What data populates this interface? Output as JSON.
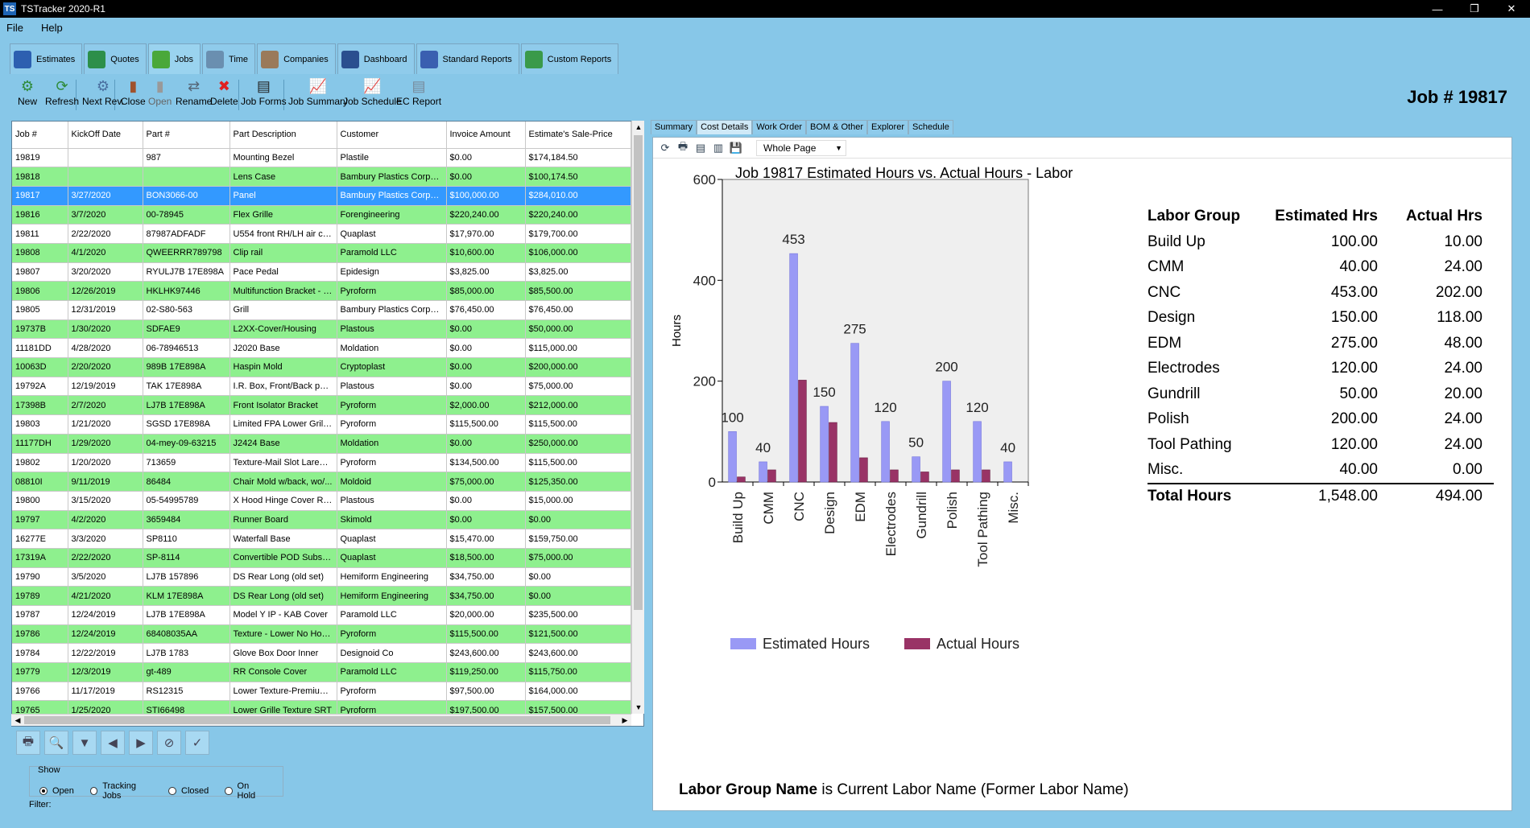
{
  "window": {
    "title": "TSTracker 2020-R1",
    "app_icon": "TS",
    "minimize": "—",
    "maximize": "❐",
    "close": "✕"
  },
  "menu": [
    "File",
    "Help"
  ],
  "module_tabs": [
    {
      "label": "Estimates",
      "icon": "estimates-icon",
      "color": "#2d5fb0"
    },
    {
      "label": "Quotes",
      "icon": "quotes-icon",
      "color": "#2d8f4a"
    },
    {
      "label": "Jobs",
      "icon": "jobs-gear-icon",
      "color": "#4aa83a",
      "active": true
    },
    {
      "label": "Time",
      "icon": "clock-icon",
      "color": "#6a8fb0"
    },
    {
      "label": "Companies",
      "icon": "companies-icon",
      "color": "#9a7a5a"
    },
    {
      "label": "Dashboard",
      "icon": "dashboard-icon",
      "color": "#2a4f8f"
    },
    {
      "label": "Standard Reports",
      "icon": "standard-reports-icon",
      "color": "#3a5fb0"
    },
    {
      "label": "Custom Reports",
      "icon": "custom-reports-icon",
      "color": "#3a9a4a"
    }
  ],
  "toolbar": [
    {
      "label": "New",
      "icon": "new-gear-icon",
      "glyph": "⚙",
      "color": "#2e8b3a"
    },
    {
      "label": "Refresh",
      "icon": "refresh-icon",
      "glyph": "⟳",
      "color": "#2e8b3a"
    },
    {
      "label": "Next Rev.",
      "icon": "next-revision-icon",
      "glyph": "⚙",
      "color": "#4a6fa0"
    },
    {
      "label": "Close",
      "icon": "close-job-icon",
      "glyph": "▮",
      "color": "#a0522d"
    },
    {
      "label": "Open",
      "icon": "open-job-icon",
      "glyph": "▮",
      "color": "#999999",
      "disabled": true
    },
    {
      "label": "Rename",
      "icon": "rename-icon",
      "glyph": "⇄",
      "color": "#556677"
    },
    {
      "label": "Delete",
      "icon": "delete-icon",
      "glyph": "✖",
      "color": "#e02020"
    },
    {
      "label": "Job Forms",
      "icon": "job-forms-icon",
      "glyph": "▤",
      "color": "#222222"
    },
    {
      "label": "Job Summary",
      "icon": "job-summary-icon",
      "glyph": "📈",
      "color": "#c03030"
    },
    {
      "label": "Job Schedule",
      "icon": "job-schedule-icon",
      "glyph": "📈",
      "color": "#c03030"
    },
    {
      "label": "EC Report",
      "icon": "ec-report-icon",
      "glyph": "▤",
      "color": "#778899"
    }
  ],
  "job_header": "Job # 19817",
  "grid": {
    "columns": [
      "Job #",
      "KickOff Date",
      "Part #",
      "Part Description",
      "Customer",
      "Invoice Amount",
      "Estimate's Sale-Price"
    ],
    "rows": [
      {
        "c": [
          "19819",
          "",
          "987",
          "Mounting Bezel",
          "Plastile",
          "$0.00",
          "$174,184.50"
        ],
        "s": ""
      },
      {
        "c": [
          "19818",
          "",
          "",
          "Lens Case",
          "Bambury Plastics Corpora...",
          "$0.00",
          "$100,174.50"
        ],
        "s": "green"
      },
      {
        "c": [
          "19817",
          "3/27/2020",
          "BON3066-00",
          "Panel",
          "Bambury Plastics Corpora...",
          "$100,000.00",
          "$284,010.00"
        ],
        "s": "sel"
      },
      {
        "c": [
          "19816",
          "3/7/2020",
          "00-78945",
          "Flex Grille",
          "Forengineering",
          "$220,240.00",
          "$220,240.00"
        ],
        "s": "green"
      },
      {
        "c": [
          "19811",
          "2/22/2020",
          "87987ADFADF",
          "U554 front RH/LH air cu...",
          "Quaplast",
          "$17,970.00",
          "$179,700.00"
        ],
        "s": ""
      },
      {
        "c": [
          "19808",
          "4/1/2020",
          "QWEERRR789798",
          "Clip rail",
          "Paramold LLC",
          "$10,600.00",
          "$106,000.00"
        ],
        "s": "green"
      },
      {
        "c": [
          "19807",
          "3/20/2020",
          "RYULJ7B 17E898A",
          "Pace Pedal",
          "Epidesign",
          "$3,825.00",
          "$3,825.00"
        ],
        "s": ""
      },
      {
        "c": [
          "19806",
          "12/26/2019",
          "HKLHK97446",
          "Multifunction Bracket - 3 ...",
          "Pyroform",
          "$85,000.00",
          "$85,500.00"
        ],
        "s": "green"
      },
      {
        "c": [
          "19805",
          "12/31/2019",
          "02-S80-563",
          "Grill",
          "Bambury Plastics Corpora...",
          "$76,450.00",
          "$76,450.00"
        ],
        "s": ""
      },
      {
        "c": [
          "19737B",
          "1/30/2020",
          "SDFAE9",
          "L2XX-Cover/Housing",
          "Plastous",
          "$0.00",
          "$50,000.00"
        ],
        "s": "green"
      },
      {
        "c": [
          "11181DD",
          "4/28/2020",
          "06-78946513",
          "J2020 Base",
          "Moldation",
          "$0.00",
          "$115,000.00"
        ],
        "s": ""
      },
      {
        "c": [
          "10063D",
          "2/20/2020",
          "989B 17E898A",
          "Haspin Mold",
          "Cryptoplast",
          "$0.00",
          "$200,000.00"
        ],
        "s": "green"
      },
      {
        "c": [
          "19792A",
          "12/19/2019",
          "TAK 17E898A",
          "I.R. Box, Front/Back panel",
          "Plastous",
          "$0.00",
          "$75,000.00"
        ],
        "s": ""
      },
      {
        "c": [
          "17398B",
          "2/7/2020",
          "LJ7B 17E898A",
          "Front Isolator Bracket",
          "Pyroform",
          "$2,000.00",
          "$212,000.00"
        ],
        "s": "green"
      },
      {
        "c": [
          "19803",
          "1/21/2020",
          "SGSD 17E898A",
          "Limited FPA Lower Grille ...",
          "Pyroform",
          "$115,500.00",
          "$115,500.00"
        ],
        "s": ""
      },
      {
        "c": [
          "11177DH",
          "1/29/2020",
          "04-mey-09-63215",
          "J2424 Base",
          "Moldation",
          "$0.00",
          "$250,000.00"
        ],
        "s": "green"
      },
      {
        "c": [
          "19802",
          "1/20/2020",
          "713659",
          "Texture-Mail Slot Laredo...",
          "Pyroform",
          "$134,500.00",
          "$115,500.00"
        ],
        "s": ""
      },
      {
        "c": [
          "08810I",
          "9/11/2019",
          "86484",
          "Chair Mold w/back, wo/...",
          "Moldoid",
          "$75,000.00",
          "$125,350.00"
        ],
        "s": "green"
      },
      {
        "c": [
          "19800",
          "3/15/2020",
          "05-54995789",
          "X Hood Hinge Cover RH...",
          "Plastous",
          "$0.00",
          "$15,000.00"
        ],
        "s": ""
      },
      {
        "c": [
          "19797",
          "4/2/2020",
          "3659484",
          "Runner Board",
          "Skimold",
          "$0.00",
          "$0.00"
        ],
        "s": "green"
      },
      {
        "c": [
          "16277E",
          "3/3/2020",
          "SP8110",
          "Waterfall Base",
          "Quaplast",
          "$15,470.00",
          "$159,750.00"
        ],
        "s": ""
      },
      {
        "c": [
          "17319A",
          "2/22/2020",
          "SP-8114",
          "Convertible POD Substrate",
          "Quaplast",
          "$18,500.00",
          "$75,000.00"
        ],
        "s": "green"
      },
      {
        "c": [
          "19790",
          "3/5/2020",
          "LJ7B 157896",
          "DS Rear Long (old set)",
          "Hemiform Engineering",
          "$34,750.00",
          "$0.00"
        ],
        "s": ""
      },
      {
        "c": [
          "19789",
          "4/21/2020",
          "KLM 17E898A",
          "DS Rear Long (old set)",
          "Hemiform Engineering",
          "$34,750.00",
          "$0.00"
        ],
        "s": "green"
      },
      {
        "c": [
          "19787",
          "12/24/2019",
          "LJ7B 17E898A",
          "Model Y IP - KAB Cover",
          "Paramold LLC",
          "$20,000.00",
          "$235,500.00"
        ],
        "s": ""
      },
      {
        "c": [
          "19786",
          "12/24/2019",
          "68408035AA",
          "Texture -  Lower No Hoo...",
          "Pyroform",
          "$115,500.00",
          "$121,500.00"
        ],
        "s": "green"
      },
      {
        "c": [
          "19784",
          "12/22/2019",
          "LJ7B 1783",
          "Glove Box Door Inner",
          "Designoid Co",
          "$243,600.00",
          "$243,600.00"
        ],
        "s": ""
      },
      {
        "c": [
          "19779",
          "12/3/2019",
          "gt-489",
          "RR Console Cover",
          "Paramold LLC",
          "$119,250.00",
          "$115,750.00"
        ],
        "s": "green"
      },
      {
        "c": [
          "19766",
          "11/17/2019",
          "RS12315",
          "Lower Texture-Premium ...",
          "Pyroform",
          "$97,500.00",
          "$164,000.00"
        ],
        "s": ""
      },
      {
        "c": [
          "19765",
          "1/25/2020",
          "STI66498",
          "Lower Grille Texture SRT",
          "Pyroform",
          "$197,500.00",
          "$157,500.00"
        ],
        "s": "green"
      }
    ]
  },
  "nav_buttons": [
    {
      "name": "print-button",
      "glyph": "🖶"
    },
    {
      "name": "preview-button",
      "glyph": "🔍"
    },
    {
      "name": "filter-button",
      "glyph": "▼"
    },
    {
      "name": "previous-button",
      "glyph": "◀"
    },
    {
      "name": "next-button",
      "glyph": "▶"
    },
    {
      "name": "stop-button",
      "glyph": "⊘"
    },
    {
      "name": "checklist-button",
      "glyph": "✓"
    }
  ],
  "show": {
    "legend": "Show",
    "options": [
      "Open",
      "Tracking Jobs",
      "Closed",
      "On Hold"
    ],
    "selected": "Open"
  },
  "filter_label": "Filter:",
  "report_tabs": [
    "Summary",
    "Cost Details",
    "Work Order",
    "BOM & Other",
    "Explorer",
    "Schedule"
  ],
  "report_tab_active": "Cost Details",
  "report_toolbar": {
    "zoom": "Whole Page"
  },
  "chart_data": {
    "type": "bar",
    "title": "Job 19817 Estimated Hours vs. Actual Hours - Labor",
    "ylabel": "Hours",
    "xlabel": "",
    "ylim": [
      0,
      600
    ],
    "yticks": [
      0,
      200,
      400,
      600
    ],
    "categories": [
      "Build Up",
      "CMM",
      "CNC",
      "Design",
      "EDM",
      "Electrodes",
      "Gundrill",
      "Polish",
      "Tool Pathing",
      "Misc."
    ],
    "series": [
      {
        "name": "Estimated Hours",
        "color": "#9999f5",
        "values": [
          100,
          40,
          453,
          150,
          275,
          120,
          50,
          200,
          120,
          40
        ],
        "labels": [
          "100",
          "40",
          "453",
          "150",
          "275",
          "120",
          "50",
          "200",
          "120",
          "40"
        ]
      },
      {
        "name": "Actual Hours",
        "color": "#993366",
        "values": [
          10,
          24,
          202,
          118,
          48,
          24,
          20,
          24,
          24,
          0
        ]
      }
    ],
    "grid": false,
    "legend": "bottom"
  },
  "labor_table": {
    "headers": [
      "Labor Group",
      "Estimated Hrs",
      "Actual Hrs"
    ],
    "rows": [
      [
        "Build Up",
        "100.00",
        "10.00"
      ],
      [
        "CMM",
        "40.00",
        "24.00"
      ],
      [
        "CNC",
        "453.00",
        "202.00"
      ],
      [
        "Design",
        "150.00",
        "118.00"
      ],
      [
        "EDM",
        "275.00",
        "48.00"
      ],
      [
        "Electrodes",
        "120.00",
        "24.00"
      ],
      [
        "Gundrill",
        "50.00",
        "20.00"
      ],
      [
        "Polish",
        "200.00",
        "24.00"
      ],
      [
        "Tool Pathing",
        "120.00",
        "24.00"
      ],
      [
        "Misc.",
        "40.00",
        "0.00"
      ]
    ],
    "total": [
      "Total Hours",
      "1,548.00",
      "494.00"
    ]
  },
  "footnote": {
    "bold": "Labor Group Name",
    "rest": " is Current Labor Name (Former Labor Name)"
  }
}
